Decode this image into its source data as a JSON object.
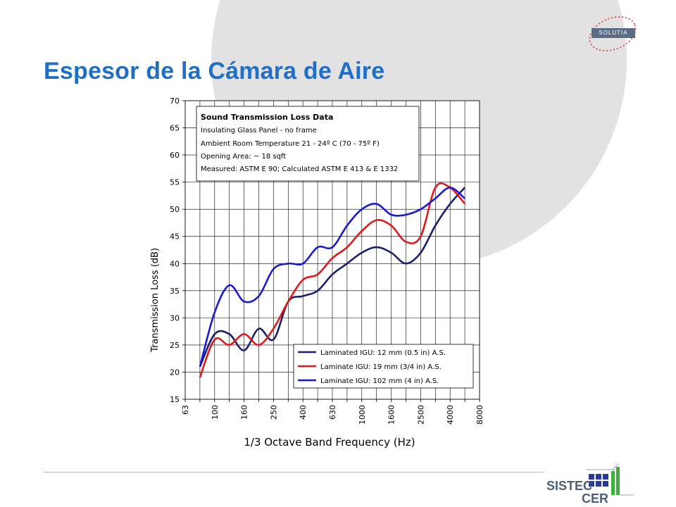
{
  "slide": {
    "title": "Espesor de la Cámara de Aire",
    "logo_top": "SOLUTIA",
    "logo_bottom_line1": "SISTEC",
    "logo_bottom_line2": "CER"
  },
  "colors": {
    "title": "#1f6fc9",
    "background_circle": "#e2e2e2",
    "series": [
      "#1b1f6e",
      "#e0191b",
      "#1a1ad6"
    ]
  },
  "chart_data": {
    "type": "line",
    "xlabel": "1/3 Octave Band Frequency (Hz)",
    "ylabel": "Transmission Loss (dB)",
    "ylim": [
      15,
      70
    ],
    "yticks": [
      15,
      20,
      25,
      30,
      35,
      40,
      45,
      50,
      55,
      60,
      65,
      70
    ],
    "x_categories": [
      "63",
      "80",
      "100",
      "125",
      "160",
      "200",
      "250",
      "315",
      "400",
      "500",
      "630",
      "800",
      "1000",
      "1250",
      "1600",
      "2000",
      "2500",
      "3150",
      "4000",
      "5000",
      "8000"
    ],
    "x_tick_labels": [
      "63",
      "100",
      "160",
      "250",
      "400",
      "630",
      "1000",
      "1600",
      "2500",
      "4000",
      "8000"
    ],
    "grid": true,
    "legend_position": "bottom-right",
    "info_box": [
      "Sound Transmission Loss Data",
      "Insulating Glass Panel - no frame",
      "Ambient Room Temperature 21 - 24º C (70 - 75º F)",
      "Opening Area: ~ 18 sqft",
      "Measured:  ASTM E 90; Calculated ASTM E 413 & E 1332"
    ],
    "series": [
      {
        "name": "Laminated IGU: 12 mm (0.5 in) A.S.",
        "color": "#1b1f6e",
        "x": [
          "80",
          "100",
          "125",
          "160",
          "200",
          "250",
          "315",
          "400",
          "500",
          "630",
          "800",
          "1000",
          "1250",
          "1600",
          "2000",
          "2500",
          "3150",
          "4000",
          "5000"
        ],
        "values": [
          21,
          27,
          27,
          24,
          28,
          26,
          33,
          34,
          35,
          38,
          40,
          42,
          43,
          42,
          40,
          42,
          47,
          51,
          54
        ]
      },
      {
        "name": "Laminate IGU: 19 mm (3/4 in) A.S.",
        "color": "#e0191b",
        "x": [
          "80",
          "100",
          "125",
          "160",
          "200",
          "250",
          "315",
          "400",
          "500",
          "630",
          "800",
          "1000",
          "1250",
          "1600",
          "2000",
          "2500",
          "3150",
          "4000",
          "5000"
        ],
        "values": [
          19,
          26,
          25,
          27,
          25,
          28,
          33,
          37,
          38,
          41,
          43,
          46,
          48,
          47,
          44,
          45,
          54,
          54,
          51
        ]
      },
      {
        "name": "Laminate IGU: 102 mm (4 in) A.S.",
        "color": "#1a1ad6",
        "x": [
          "80",
          "100",
          "125",
          "160",
          "200",
          "250",
          "315",
          "400",
          "500",
          "630",
          "800",
          "1000",
          "1250",
          "1600",
          "2000",
          "2500",
          "3150",
          "4000",
          "5000"
        ],
        "values": [
          21,
          31,
          36,
          33,
          34,
          39,
          40,
          40,
          43,
          43,
          47,
          50,
          51,
          49,
          49,
          50,
          52,
          54,
          52
        ]
      }
    ]
  }
}
